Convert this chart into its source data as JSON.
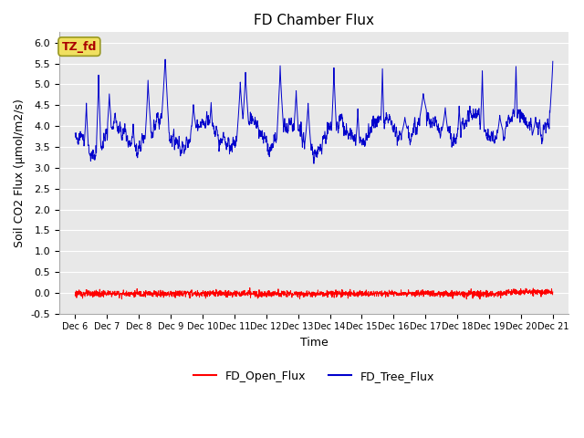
{
  "title": "FD Chamber Flux",
  "ylabel": "Soil CO2 Flux (μmol/m2/s)",
  "xlabel": "Time",
  "ylim": [
    -0.5,
    6.25
  ],
  "yticks": [
    -0.5,
    0.0,
    0.5,
    1.0,
    1.5,
    2.0,
    2.5,
    3.0,
    3.5,
    4.0,
    4.5,
    5.0,
    5.5,
    6.0
  ],
  "xlim_days": [
    5.5,
    21.5
  ],
  "xtick_days": [
    6,
    7,
    8,
    9,
    10,
    11,
    12,
    13,
    14,
    15,
    16,
    17,
    18,
    19,
    20,
    21
  ],
  "xtick_labels": [
    "Dec 6",
    "Dec 7",
    "Dec 8",
    "Dec 9",
    "Dec 10",
    "Dec 11",
    "Dec 12",
    "Dec 13",
    "Dec 14",
    "Dec 15",
    "Dec 16",
    "Dec 17",
    "Dec 18",
    "Dec 19",
    "Dec 20",
    "Dec 21"
  ],
  "bg_color": "#e8e8e8",
  "grid_color": "#ffffff",
  "annotation_text": "TZ_fd",
  "annotation_bg": "#f0e060",
  "annotation_fg": "#aa0000",
  "line1_color": "#ff0000",
  "line2_color": "#0000cc",
  "line1_label": "FD_Open_Flux",
  "line2_label": "FD_Tree_Flux",
  "title_fontsize": 11,
  "axis_label_fontsize": 9,
  "tick_fontsize": 8
}
